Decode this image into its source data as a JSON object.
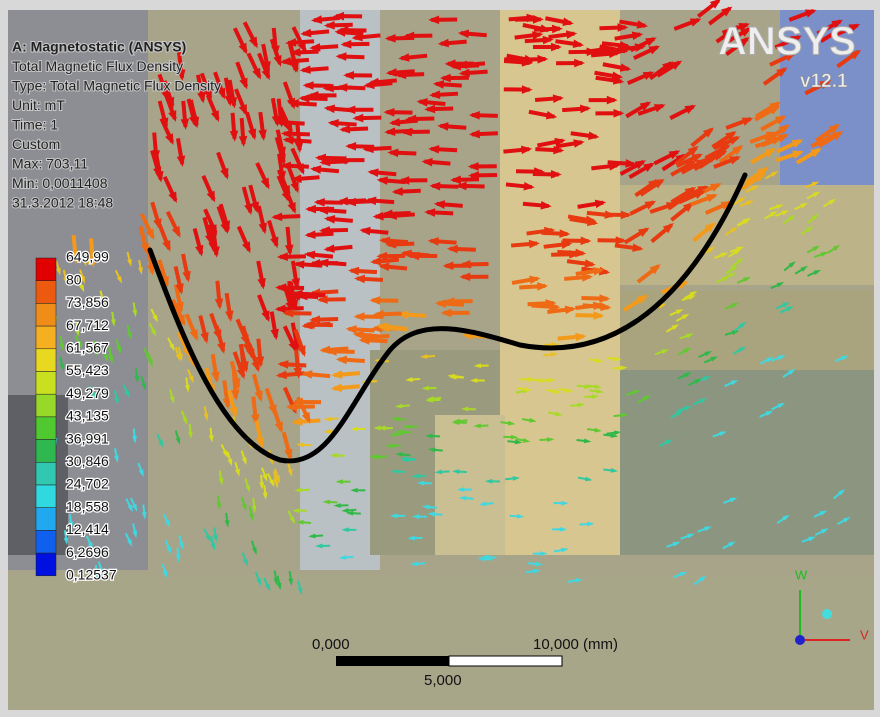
{
  "header": {
    "lines": [
      "A: Magnetostatic (ANSYS)",
      "Total Magnetic Flux Density",
      "Type: Total Magnetic Flux Density",
      "Unit: mT",
      "Time: 1",
      "Custom",
      "Max: 703,11",
      "Min: 0,0011408",
      "31.3.2012 18:48"
    ]
  },
  "legend": {
    "labels": [
      "649,99",
      "80",
      "73,856",
      "67,712",
      "61,567",
      "55,423",
      "49,279",
      "43,135",
      "36,991",
      "30,846",
      "24,702",
      "18,558",
      "12,414",
      "6,2696",
      "0,12537"
    ]
  },
  "logo": {
    "brand": "ANSYS",
    "version": "v12.1"
  },
  "scale_bar": {
    "start": "0,000",
    "end": "10,000 (mm)",
    "middle": "5,000"
  },
  "triad": {
    "up": "W",
    "right": "V"
  }
}
